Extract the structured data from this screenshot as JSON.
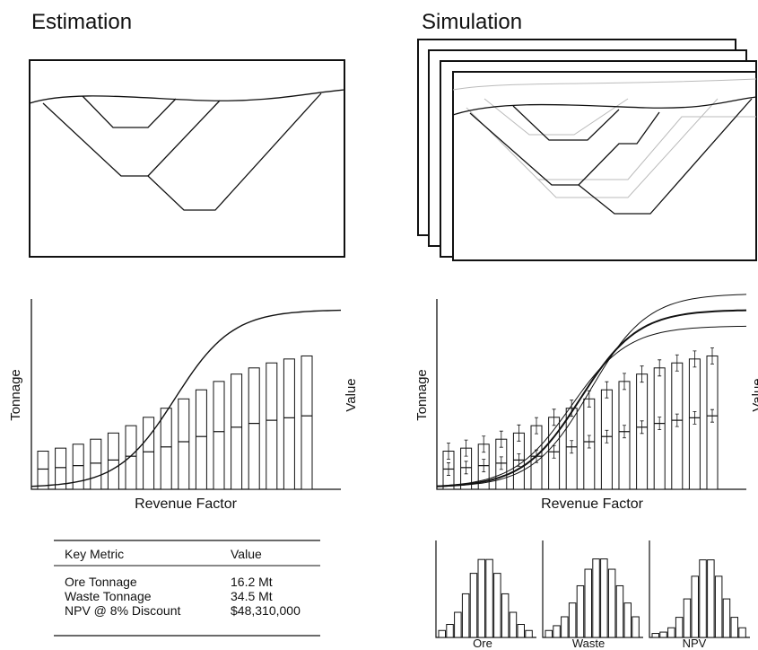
{
  "estimation": {
    "title": "Estimation",
    "chart": {
      "y_label": "Tonnage",
      "y2_label": "Value",
      "x_label": "Revenue Factor"
    },
    "table": {
      "header": [
        "Key Metric",
        "Value"
      ],
      "rows": [
        [
          "Ore Tonnage",
          "16.2 Mt"
        ],
        [
          "Waste Tonnage",
          "34.5 Mt"
        ],
        [
          "NPV @ 8% Discount",
          "$48,310,000"
        ]
      ]
    }
  },
  "simulation": {
    "title": "Simulation",
    "chart": {
      "y_label": "Tonnage",
      "y2_label": "Value",
      "x_label": "Revenue Factor"
    },
    "histograms": [
      "Ore",
      "Waste",
      "NPV"
    ]
  }
}
